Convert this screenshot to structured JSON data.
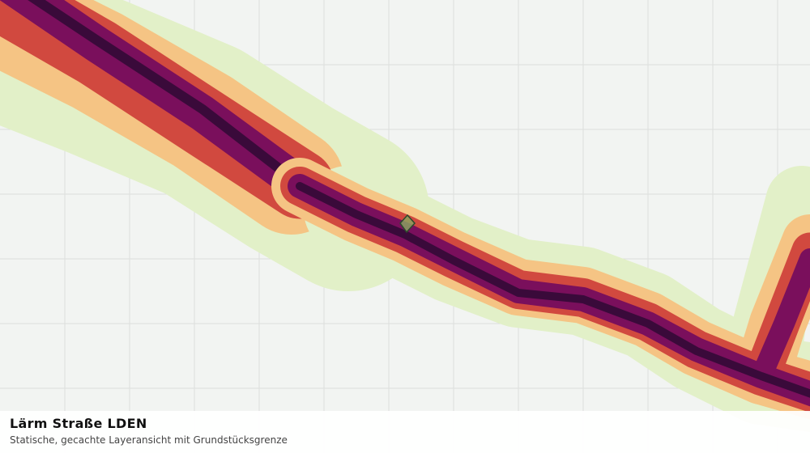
{
  "legend": {
    "title": "Lärm Straße LDEN",
    "subtitle": "Statische, gecachte Layeransicht mit Grundstücksgrenze"
  }
}
